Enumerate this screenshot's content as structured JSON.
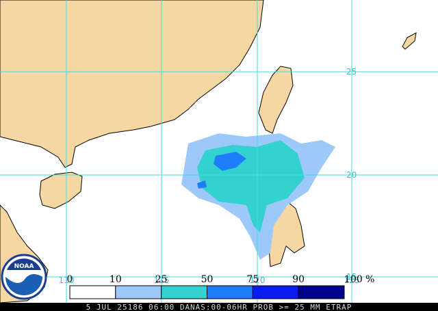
{
  "map": {
    "lat_labels": [
      "25",
      "20",
      "15"
    ],
    "lon_labels": [
      "110",
      "115",
      "120",
      "125"
    ],
    "legend": [
      {
        "label": "0",
        "color": "#ffffff"
      },
      {
        "label": "10",
        "color": "#9cc8fa"
      },
      {
        "label": "25",
        "color": "#33d1cf"
      },
      {
        "label": "50",
        "color": "#1f7dfb"
      },
      {
        "label": "75",
        "color": "#0a1cf0"
      },
      {
        "label": "90",
        "color": "#00008c"
      },
      {
        "label": "100 %",
        "color": null
      }
    ],
    "logo": "NOAA",
    "caption": "5 JUL 25186 06:00 DANAS:00-06HR PROB >= 25 MM ETRAP"
  }
}
